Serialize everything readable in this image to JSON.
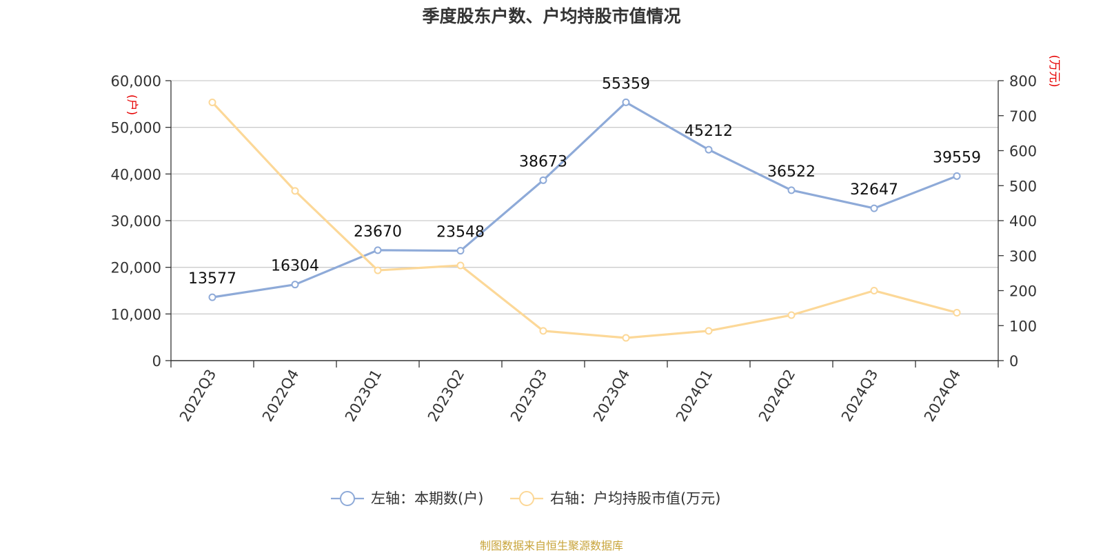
{
  "chart_data": {
    "type": "line",
    "title": "季度股东户数、户均持股市值情况",
    "categories": [
      "2022Q3",
      "2022Q4",
      "2023Q1",
      "2023Q2",
      "2023Q3",
      "2023Q4",
      "2024Q1",
      "2024Q2",
      "2024Q3",
      "2024Q4"
    ],
    "series": [
      {
        "name": "左轴：本期数(户)",
        "axis": "left",
        "color": "#8eaad8",
        "values": [
          13577,
          16304,
          23670,
          23548,
          38673,
          55359,
          45212,
          36522,
          32647,
          39559
        ],
        "labels": [
          "13577",
          "16304",
          "23670",
          "23548",
          "38673",
          "55359",
          "45212",
          "36522",
          "32647",
          "39559"
        ]
      },
      {
        "name": "右轴：户均持股市值(万元)",
        "axis": "right",
        "color": "#fcd898",
        "values": [
          738,
          485,
          258,
          272,
          85,
          65,
          85,
          130,
          200,
          137
        ]
      }
    ],
    "left_axis": {
      "unit": "(户)",
      "min": 0,
      "max": 60000,
      "ticks": [
        "0",
        "10,000",
        "20,000",
        "30,000",
        "40,000",
        "50,000",
        "60,000"
      ]
    },
    "right_axis": {
      "unit": "(万元)",
      "min": 0,
      "max": 800,
      "ticks": [
        "0",
        "100",
        "200",
        "300",
        "400",
        "500",
        "600",
        "700",
        "800"
      ]
    },
    "grid": true,
    "legend_position": "bottom",
    "source": "制图数据来自恒生聚源数据库"
  }
}
